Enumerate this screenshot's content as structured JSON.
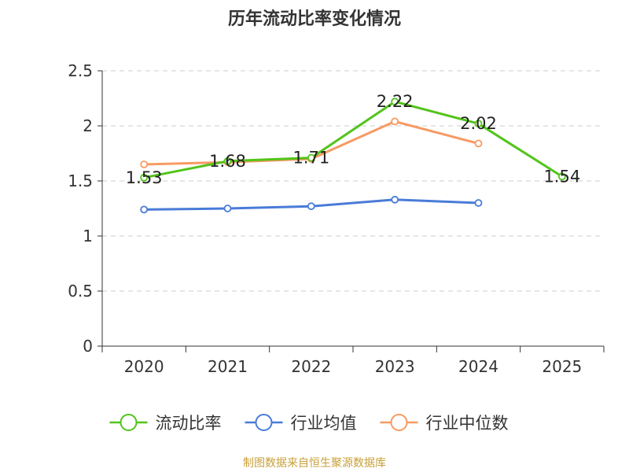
{
  "chart_data": {
    "type": "line",
    "title": "历年流动比率变化情况",
    "categories": [
      "2020",
      "2021",
      "2022",
      "2023",
      "2024",
      "2025"
    ],
    "ylim": [
      0,
      2.5
    ],
    "yticks": [
      "0",
      "0.5",
      "1",
      "1.5",
      "2",
      "2.5"
    ],
    "grid": true,
    "legend_position": "bottom",
    "series": [
      {
        "name": "流动比率",
        "color": "#52c41a",
        "values": [
          1.53,
          1.68,
          1.71,
          2.22,
          2.02,
          1.54
        ],
        "labels": [
          "1.53",
          "1.68",
          "1.71",
          "2.22",
          "2.02",
          "1.54"
        ],
        "show_labels": true
      },
      {
        "name": "行业均值",
        "color": "#4a7bd8",
        "values": [
          1.24,
          1.25,
          1.27,
          1.33,
          1.3,
          null
        ],
        "show_labels": false
      },
      {
        "name": "行业中位数",
        "color": "#f79a63",
        "values": [
          1.65,
          1.67,
          1.7,
          2.04,
          1.84,
          null
        ],
        "show_labels": false
      }
    ]
  },
  "source_text": "制图数据来自恒生聚源数据库",
  "source_color": "#c8a03a"
}
